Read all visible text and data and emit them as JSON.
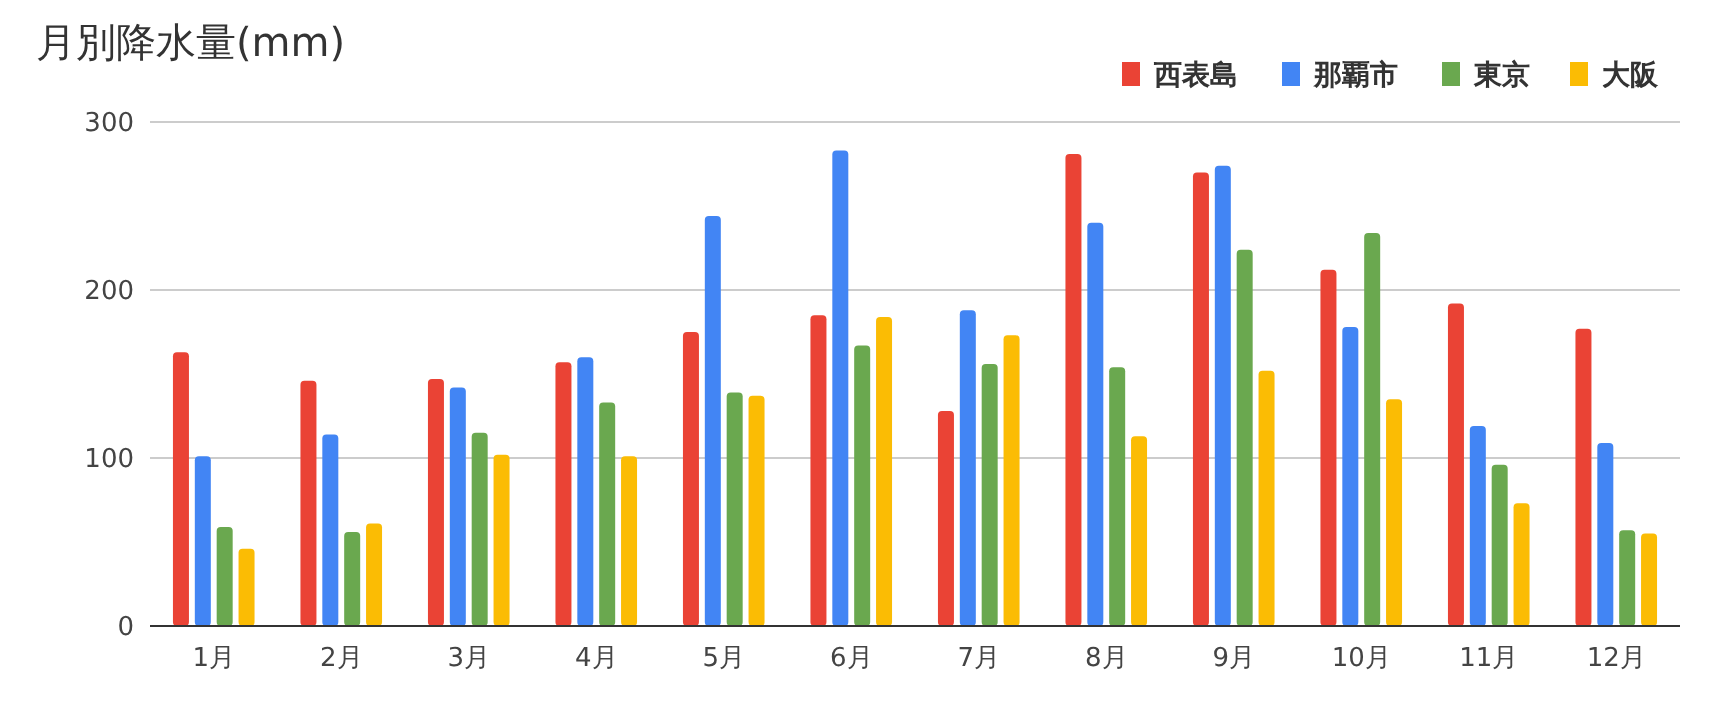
{
  "chart_data": {
    "type": "bar",
    "title": "月別降水量(mm)",
    "categories": [
      "1月",
      "2月",
      "3月",
      "4月",
      "5月",
      "6月",
      "7月",
      "8月",
      "9月",
      "10月",
      "11月",
      "12月"
    ],
    "series": [
      {
        "name": "西表島",
        "color": "#ea4335",
        "values": [
          163,
          146,
          147,
          157,
          175,
          185,
          128,
          281,
          270,
          212,
          192,
          177
        ]
      },
      {
        "name": "那覇市",
        "color": "#4285f4",
        "values": [
          101,
          114,
          142,
          160,
          244,
          283,
          188,
          240,
          274,
          178,
          119,
          109
        ]
      },
      {
        "name": "東京",
        "color": "#6aa84f",
        "values": [
          59,
          56,
          115,
          133,
          139,
          167,
          156,
          154,
          224,
          234,
          96,
          57
        ]
      },
      {
        "name": "大阪",
        "color": "#fbbc04",
        "values": [
          46,
          61,
          102,
          101,
          137,
          184,
          173,
          113,
          152,
          135,
          73,
          55
        ]
      }
    ],
    "ylim": [
      0,
      300
    ],
    "yticks": [
      0,
      100,
      200,
      300
    ],
    "grid": "y",
    "legend": "top right"
  }
}
